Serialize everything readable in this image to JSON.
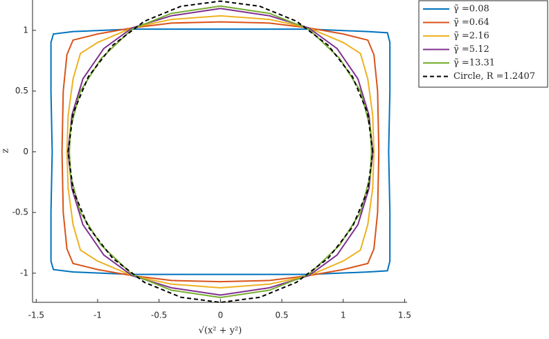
{
  "chart_data": {
    "type": "line",
    "xlabel": "√(x² + y²)",
    "ylabel": "z",
    "xlim": [
      -1.53,
      1.52
    ],
    "ylim": [
      -1.24,
      1.25
    ],
    "xticks": [
      -1.5,
      -1,
      -0.5,
      0,
      0.5,
      1,
      1.5
    ],
    "yticks": [
      -1,
      -0.5,
      0,
      0.5,
      1
    ],
    "legend": "outside-top-right",
    "series": [
      {
        "name": "γ̃ =0.08",
        "color": "#0072BD",
        "x": [
          0,
          0.72,
          1.2,
          1.36,
          1.38,
          1.38,
          1.37,
          1.38,
          1.38,
          1.36,
          1.2,
          0.72,
          0,
          -0.72,
          -1.2,
          -1.36,
          -1.38,
          -1.38,
          -1.37,
          -1.38,
          -1.38,
          -1.36,
          -1.2,
          -0.72,
          0
        ],
        "values": [
          1.01,
          1.01,
          0.99,
          0.98,
          0.9,
          0.5,
          0,
          -0.5,
          -0.9,
          -0.98,
          -0.99,
          -1.01,
          -1.01,
          -1.01,
          -0.99,
          -0.97,
          -0.9,
          -0.5,
          0,
          0.5,
          0.9,
          0.97,
          0.99,
          1.01,
          1.01
        ]
      },
      {
        "name": "γ̃ =0.64",
        "color": "#D95319",
        "x": [
          0,
          0.4,
          0.72,
          1.0,
          1.2,
          1.25,
          1.28,
          1.29,
          1.28,
          1.25,
          1.2,
          1.0,
          0.72,
          0.4,
          0,
          -0.4,
          -0.72,
          -1.0,
          -1.2,
          -1.25,
          -1.28,
          -1.29,
          -1.28,
          -1.25,
          -1.2,
          -1.0,
          -0.72,
          -0.4,
          0
        ],
        "values": [
          1.07,
          1.06,
          1.02,
          0.97,
          0.92,
          0.8,
          0.5,
          0,
          -0.5,
          -0.8,
          -0.92,
          -0.97,
          -1.02,
          -1.06,
          -1.07,
          -1.06,
          -1.02,
          -0.97,
          -0.92,
          -0.8,
          -0.5,
          0,
          0.5,
          0.8,
          0.92,
          0.97,
          1.02,
          1.06,
          1.07
        ]
      },
      {
        "name": "γ̃ =2.16",
        "color": "#EDB120",
        "x": [
          0,
          0.4,
          0.72,
          1.0,
          1.14,
          1.2,
          1.24,
          1.25,
          1.24,
          1.2,
          1.14,
          1.0,
          0.72,
          0.4,
          0,
          -0.4,
          -0.72,
          -1.0,
          -1.14,
          -1.2,
          -1.24,
          -1.25,
          -1.24,
          -1.2,
          -1.14,
          -1.0,
          -0.72,
          -0.4,
          0
        ],
        "values": [
          1.12,
          1.09,
          1.02,
          0.9,
          0.81,
          0.6,
          0.3,
          0,
          -0.3,
          -0.6,
          -0.81,
          -0.9,
          -1.02,
          -1.09,
          -1.12,
          -1.09,
          -1.02,
          -0.9,
          -0.81,
          -0.6,
          -0.3,
          0,
          0.3,
          0.6,
          0.81,
          0.9,
          1.02,
          1.09,
          1.12
        ]
      },
      {
        "name": "γ̃ =5.12",
        "color": "#7E2F8E",
        "x": [
          0,
          0.4,
          0.72,
          0.95,
          1.12,
          1.21,
          1.24,
          1.21,
          1.12,
          0.95,
          0.72,
          0.4,
          0,
          -0.4,
          -0.72,
          -0.95,
          -1.12,
          -1.21,
          -1.24,
          -1.21,
          -1.12,
          -0.95,
          -0.72,
          -0.4,
          0
        ],
        "values": [
          1.18,
          1.12,
          1.02,
          0.85,
          0.6,
          0.3,
          0,
          -0.3,
          -0.6,
          -0.85,
          -1.02,
          -1.12,
          -1.18,
          -1.12,
          -1.02,
          -0.85,
          -0.6,
          -0.3,
          0,
          0.3,
          0.6,
          0.85,
          1.02,
          1.12,
          1.18
        ]
      },
      {
        "name": "γ̃ =13.31",
        "color": "#77AC30",
        "x": [
          0,
          0.4,
          0.72,
          0.97,
          1.14,
          1.22,
          1.23,
          1.22,
          1.14,
          0.97,
          0.72,
          0.4,
          0,
          -0.4,
          -0.72,
          -0.97,
          -1.14,
          -1.22,
          -1.23,
          -1.22,
          -1.14,
          -0.97,
          -0.72,
          -0.4,
          0
        ],
        "values": [
          1.2,
          1.14,
          1.01,
          0.77,
          0.5,
          0.2,
          0,
          -0.2,
          -0.5,
          -0.77,
          -1.01,
          -1.14,
          -1.2,
          -1.14,
          -1.01,
          -0.77,
          -0.5,
          -0.2,
          0,
          0.2,
          0.5,
          0.77,
          1.01,
          1.14,
          1.2
        ]
      },
      {
        "name": "Circle, R =1.2407",
        "color": "#000000",
        "line_style": "dashed",
        "x": [
          1.2407,
          1.1984,
          1.0745,
          0.8773,
          0.6204,
          0.3211,
          0,
          -0.3211,
          -0.6204,
          -0.8773,
          -1.0745,
          -1.1984,
          -1.2407,
          -1.1984,
          -1.0745,
          -0.8773,
          -0.6204,
          -0.3211,
          0,
          0.3211,
          0.6204,
          0.8773,
          1.0745,
          1.1984,
          1.2407
        ],
        "values": [
          0,
          0.3211,
          0.6204,
          0.8773,
          1.0745,
          1.1984,
          1.2407,
          1.1984,
          1.0745,
          0.8773,
          0.6204,
          0.3211,
          0,
          -0.3211,
          -0.6204,
          -0.8773,
          -1.0745,
          -1.1984,
          -1.2407,
          -1.1984,
          -1.0745,
          -0.8773,
          -0.6204,
          -0.3211,
          0
        ]
      }
    ]
  }
}
